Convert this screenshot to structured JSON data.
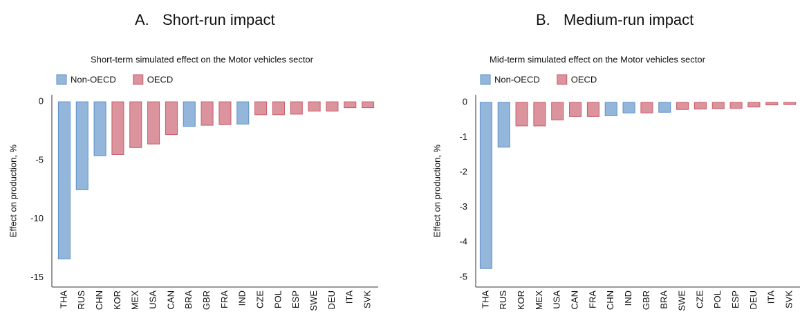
{
  "chart_data": [
    {
      "type": "bar",
      "label": "A.",
      "heading": "Short-run impact",
      "title": "Short-term simulated effect on the Motor vehicles sector",
      "y_label": "Effect on production, %",
      "categories": [
        "THA",
        "RUS",
        "CHN",
        "KOR",
        "MEX",
        "USA",
        "CAN",
        "BRA",
        "GBR",
        "FRA",
        "IND",
        "CZE",
        "POL",
        "ESP",
        "SWE",
        "DEU",
        "ITA",
        "SVK"
      ],
      "series": [
        {
          "name": "Non-OECD",
          "color": "#5b8fc7",
          "values": [
            -13.4,
            -7.5,
            -4.6,
            null,
            null,
            null,
            null,
            -2.1,
            null,
            null,
            -1.9,
            null,
            null,
            null,
            null,
            null,
            null,
            null
          ]
        },
        {
          "name": "OECD",
          "color": "#c85a68",
          "values": [
            null,
            null,
            null,
            -4.5,
            -3.9,
            -3.6,
            -2.8,
            null,
            -2.0,
            -1.95,
            null,
            -1.1,
            -1.1,
            -1.05,
            -0.8,
            -0.8,
            -0.5,
            -0.5
          ]
        }
      ],
      "ylim": [
        -15.8,
        0.6
      ],
      "yticks": [
        0,
        -5,
        -10,
        -15
      ],
      "grid": false,
      "legend": "top-left"
    },
    {
      "type": "bar",
      "label": "B.",
      "heading": "Medium-run impact",
      "title": "Mid-term simulated effect on the Motor vehicles sector",
      "y_label": "Effect on production, %",
      "categories": [
        "THA",
        "RUS",
        "KOR",
        "MEX",
        "USA",
        "CAN",
        "FRA",
        "CHN",
        "IND",
        "GBR",
        "BRA",
        "SWE",
        "CZE",
        "POL",
        "ESP",
        "DEU",
        "ITA",
        "SVK"
      ],
      "series": [
        {
          "name": "Non-OECD",
          "color": "#5b8fc7",
          "values": [
            -4.75,
            -1.28,
            null,
            null,
            null,
            null,
            null,
            -0.38,
            -0.3,
            null,
            -0.28,
            null,
            null,
            null,
            null,
            null,
            null,
            null
          ]
        },
        {
          "name": "OECD",
          "color": "#c85a68",
          "values": [
            null,
            null,
            -0.67,
            -0.67,
            -0.5,
            -0.4,
            -0.4,
            null,
            null,
            -0.3,
            null,
            -0.2,
            -0.19,
            -0.18,
            -0.17,
            -0.13,
            -0.07,
            -0.06
          ]
        }
      ],
      "ylim": [
        -5.28,
        0.22
      ],
      "yticks": [
        0,
        -1,
        -2,
        -3,
        -4,
        -5
      ],
      "grid": false,
      "legend": "top-left"
    }
  ]
}
